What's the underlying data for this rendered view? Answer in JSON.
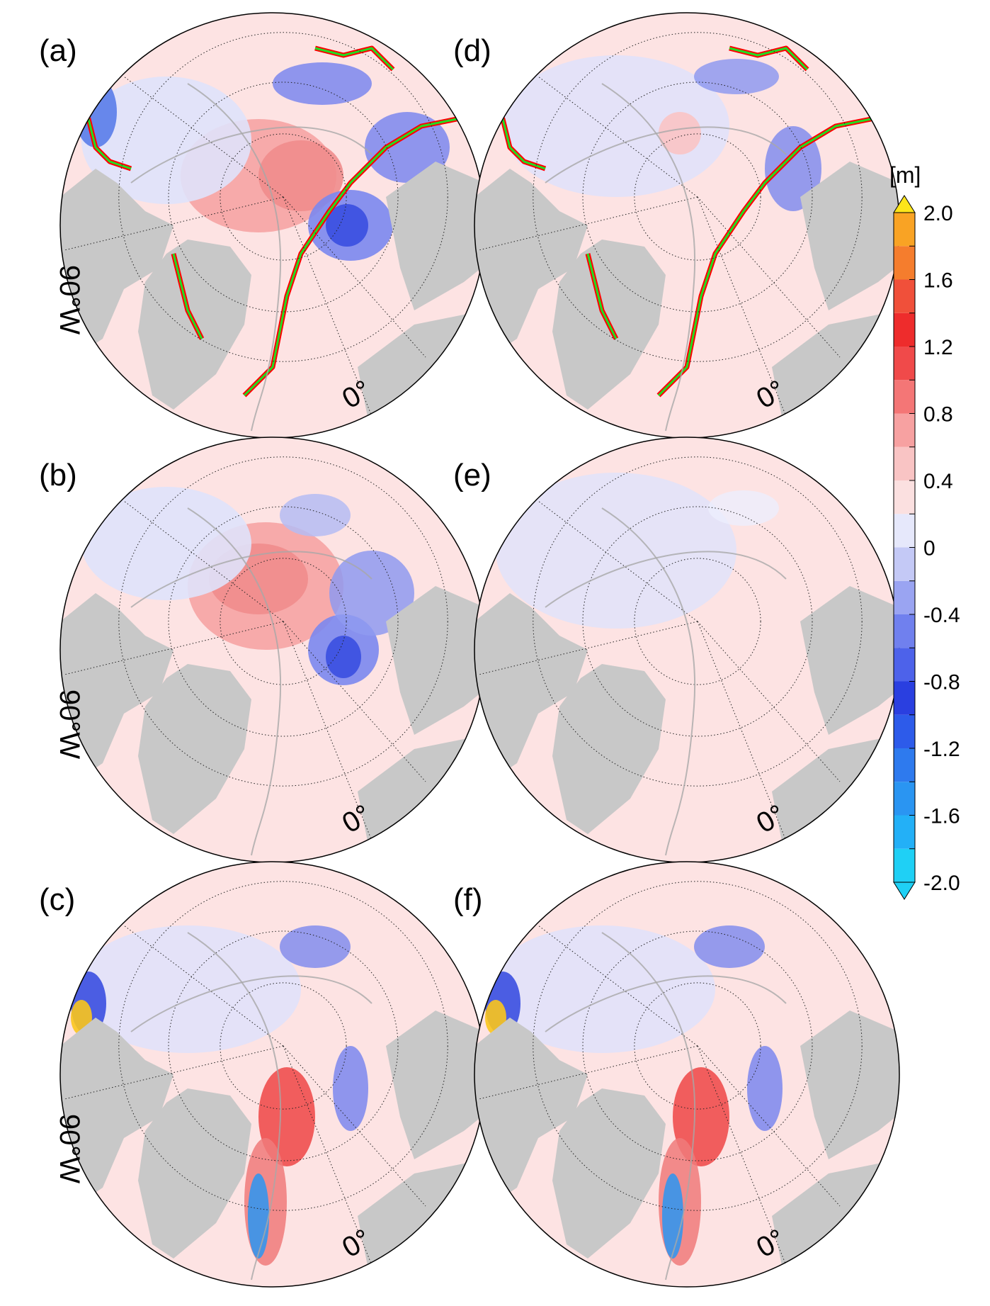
{
  "panels": [
    {
      "id": "a",
      "label": "(a)",
      "lon_left": "90°W",
      "lon_bottom": "0°",
      "pattern": "strong"
    },
    {
      "id": "b",
      "label": "(b)",
      "lon_left": "90°W",
      "lon_bottom": "0°",
      "pattern": "central"
    },
    {
      "id": "c",
      "label": "(c)",
      "lon_left": "90°W",
      "lon_bottom": "0°",
      "pattern": "noisy"
    },
    {
      "id": "d",
      "label": "(d)",
      "pattern": "edges"
    },
    {
      "id": "e",
      "label": "(e)",
      "pattern": "weak"
    },
    {
      "id": "f",
      "label": "(f)",
      "pattern": "noisy"
    }
  ],
  "colorbar": {
    "unit": "[m]",
    "ticks": [
      "2.0",
      "1.6",
      "1.2",
      "0.8",
      "0.4",
      "0",
      "-0.4",
      "-0.8",
      "-1.2",
      "-1.6",
      "-2.0"
    ],
    "tick_values": [
      2.0,
      1.6,
      1.2,
      0.8,
      0.4,
      0,
      -0.4,
      -0.8,
      -1.2,
      -1.6,
      -2.0
    ],
    "range": [
      -2.0,
      2.0
    ],
    "step": 0.2,
    "extend": "both",
    "colors": [
      "#1fd0f5",
      "#23b0f7",
      "#2a95f2",
      "#2e7aee",
      "#2d5bea",
      "#2a3fe0",
      "#4d62ea",
      "#7080ee",
      "#9aa4f2",
      "#c4c9f6",
      "#e6e8fb",
      "#fbe0e0",
      "#f9c4c4",
      "#f7a1a1",
      "#f47676",
      "#f04a4a",
      "#ee2c2c",
      "#f0503a",
      "#f57d2d",
      "#f9a324",
      "#fbc51c",
      "#fde51a"
    ]
  },
  "map_colors": {
    "land": "#c8c8c8",
    "ocean_base": "#fde3e3",
    "contour": "#a8a8a8",
    "ice_edge_red": "#ff0000",
    "ice_edge_green": "#22dd22"
  }
}
